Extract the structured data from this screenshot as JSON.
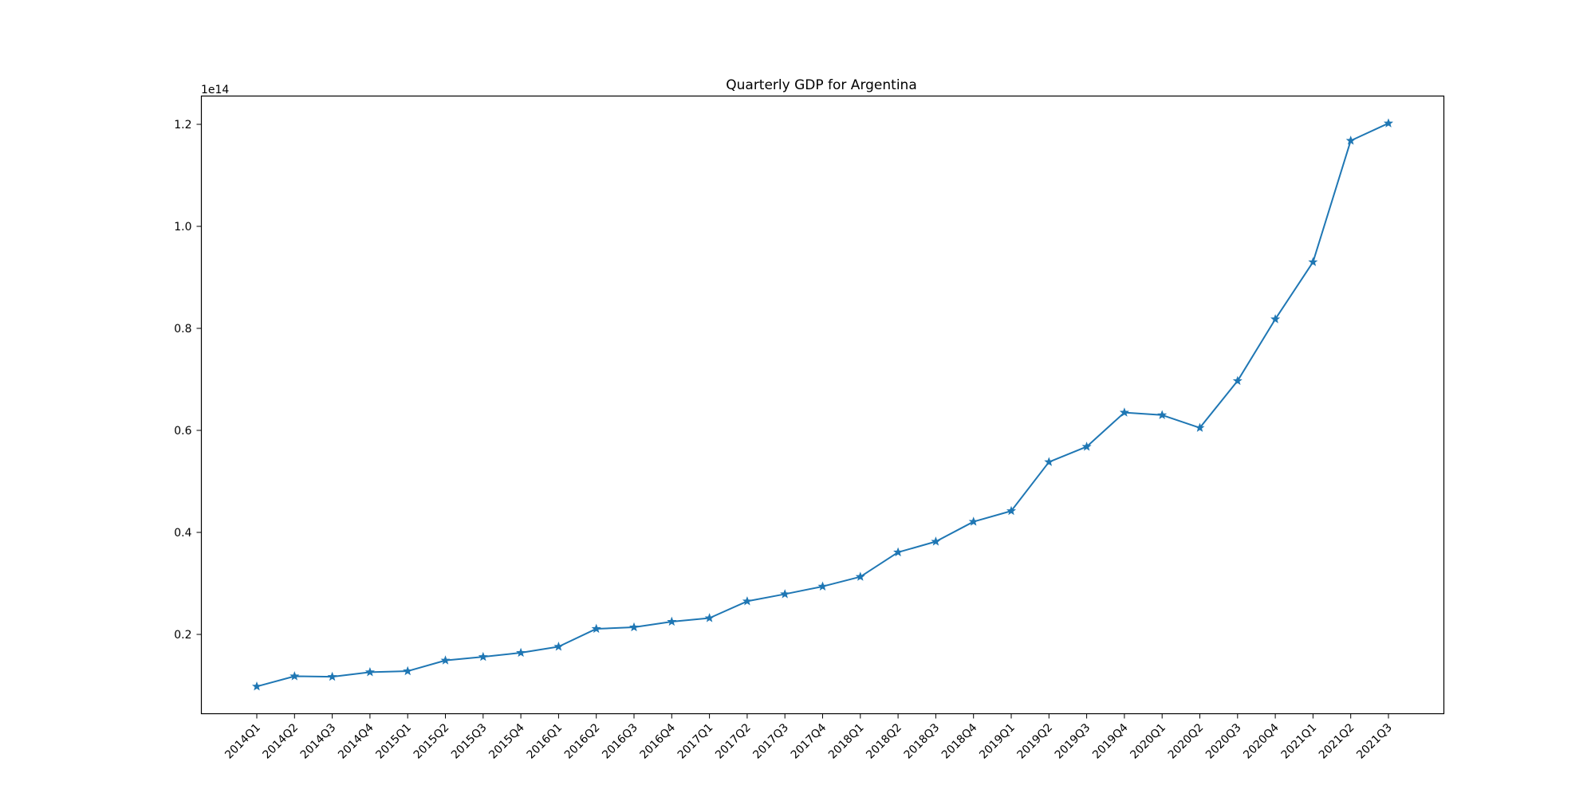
{
  "chart_data": {
    "type": "line",
    "title": "Quarterly GDP for Argentina",
    "xlabel": "",
    "ylabel": "",
    "y_offset_label": "1e14",
    "y_scale_factor": 100000000000000.0,
    "categories": [
      "2014Q1",
      "2014Q2",
      "2014Q3",
      "2014Q4",
      "2015Q1",
      "2015Q2",
      "2015Q3",
      "2015Q4",
      "2016Q1",
      "2016Q2",
      "2016Q3",
      "2016Q4",
      "2017Q1",
      "2017Q2",
      "2017Q3",
      "2017Q4",
      "2018Q1",
      "2018Q2",
      "2018Q3",
      "2018Q4",
      "2019Q1",
      "2019Q2",
      "2019Q3",
      "2019Q4",
      "2020Q1",
      "2020Q2",
      "2020Q3",
      "2020Q4",
      "2021Q1",
      "2021Q2",
      "2021Q3"
    ],
    "series": [
      {
        "values": [
          0.098,
          0.118,
          0.117,
          0.126,
          0.128,
          0.149,
          0.156,
          0.164,
          0.176,
          0.211,
          0.214,
          0.225,
          0.232,
          0.265,
          0.279,
          0.294,
          0.313,
          0.361,
          0.382,
          0.421,
          0.442,
          0.538,
          0.568,
          0.635,
          0.63,
          0.605,
          0.697,
          0.818,
          0.93,
          1.168,
          1.202
        ],
        "color": "#1f77b4",
        "marker": "star"
      }
    ],
    "ylim": [
      0.0,
      1.215
    ],
    "yticks": [
      0.2,
      0.4,
      0.6,
      0.8,
      1.0,
      1.2
    ],
    "ytick_labels": [
      "0.2",
      "0.4",
      "0.6",
      "0.8",
      "1.0",
      "1.2"
    ],
    "grid": false,
    "legend": "none"
  }
}
